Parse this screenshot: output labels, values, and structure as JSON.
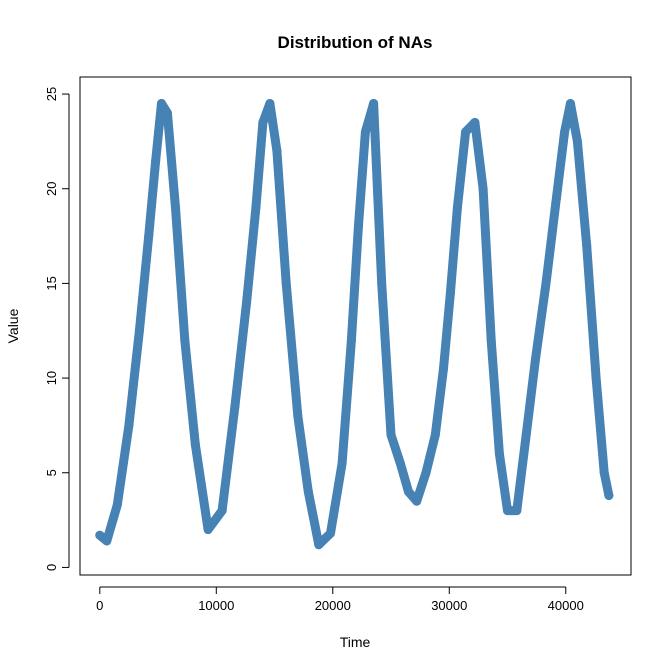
{
  "chart_data": {
    "type": "line",
    "title": "Distribution of NAs",
    "xlabel": "Time",
    "ylabel": "Value",
    "xlim": [
      -1700,
      45600
    ],
    "ylim": [
      -0.4,
      25.9
    ],
    "x_ticks": [
      0,
      10000,
      20000,
      30000,
      40000
    ],
    "x_tick_labels": [
      "0",
      "10000",
      "20000",
      "30000",
      "40000"
    ],
    "y_ticks": [
      0,
      5,
      10,
      15,
      20,
      25
    ],
    "y_tick_labels": [
      "0",
      "5",
      "10",
      "15",
      "20",
      "25"
    ],
    "grid": false,
    "legend": "none",
    "series": [
      {
        "point_color": "#4682B4",
        "line_color": "#000000",
        "x": [
          0,
          600,
          1500,
          2500,
          3400,
          4200,
          4800,
          5300,
          5800,
          6500,
          7300,
          8200,
          9300,
          10500,
          11600,
          12600,
          13400,
          14000,
          14600,
          15200,
          16000,
          17000,
          17900,
          18800,
          19800,
          20800,
          21600,
          22200,
          22800,
          23500,
          24200,
          25000,
          25800,
          26500,
          27200,
          28000,
          28800,
          29500,
          30100,
          30700,
          31400,
          32200,
          32900,
          33600,
          34300,
          35000,
          35800,
          36600,
          37400,
          38300,
          39200,
          39900,
          40400,
          41000,
          41800,
          42600,
          43300,
          43700
        ],
        "values": [
          1.7,
          1.4,
          3.3,
          7.5,
          12.5,
          17.5,
          21.5,
          24.5,
          24.0,
          19.0,
          12.0,
          6.5,
          2.0,
          3.0,
          8.5,
          14.0,
          19.0,
          23.5,
          24.5,
          22.0,
          15.0,
          8.0,
          4.0,
          1.2,
          1.8,
          5.5,
          12.0,
          18.0,
          23.0,
          24.5,
          15.0,
          7.0,
          5.5,
          4.0,
          3.5,
          5.0,
          7.0,
          10.5,
          14.5,
          19.0,
          23.0,
          23.5,
          20.0,
          12.0,
          6.0,
          3.0,
          3.0,
          7.0,
          11.0,
          15.0,
          19.5,
          23.0,
          24.5,
          22.5,
          17.0,
          10.0,
          5.0,
          3.8
        ]
      }
    ]
  }
}
